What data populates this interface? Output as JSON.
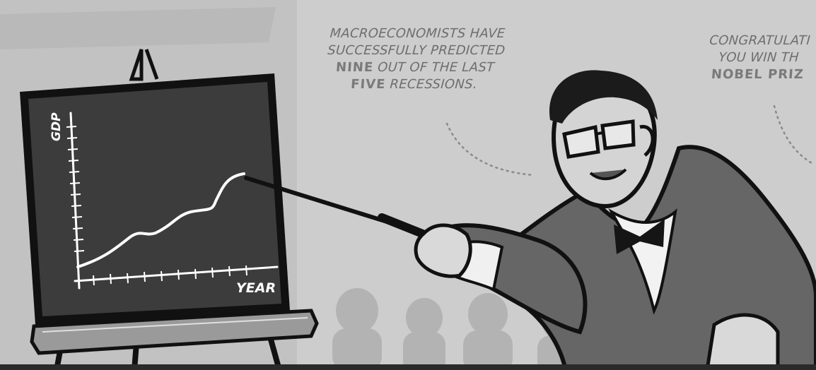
{
  "bubble_left": {
    "line1": "MACROECONOMISTS HAVE",
    "line2": "SUCCESSFULLY PREDICTED",
    "line3_bold": "NINE",
    "line3_rest": " OUT OF THE LAST",
    "line4_bold": "FIVE",
    "line4_rest": " RECESSIONS."
  },
  "bubble_right": {
    "line1": "CONGRATULATI",
    "line2": "YOU WIN TH",
    "line3_bold": "NOBEL PRIZ"
  },
  "chart": {
    "y_axis_label": "GDP",
    "x_axis_label": "YEAR"
  },
  "colors": {
    "background": "#cfcfcf",
    "board": "#3c3c3c",
    "suit": "#666666",
    "ink": "#111111"
  }
}
